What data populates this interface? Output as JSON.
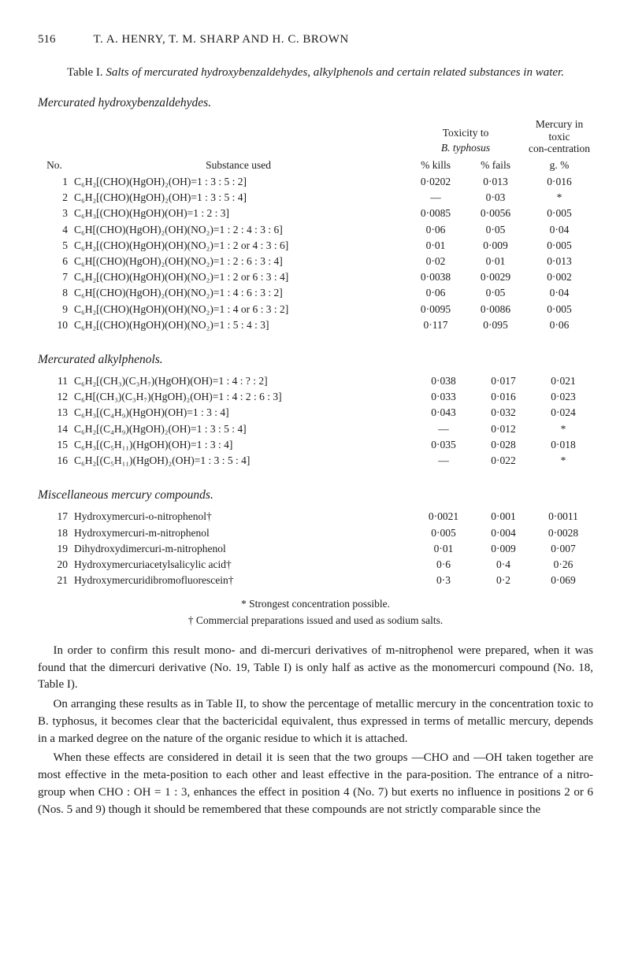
{
  "header": {
    "page_number": "516",
    "running_head": "T. A. HENRY, T. M. SHARP AND H. C. BROWN"
  },
  "table_caption": {
    "number": "Table I.",
    "text_italic": "Salts of mercurated hydroxybenzaldehydes, alkylphenols and certain related substances in water."
  },
  "headers": {
    "toxicity_super": "Toxicity to",
    "toxicity_super2": "B. typhosus",
    "mercury_super": "Mercury in toxic con‑centration",
    "no": "No.",
    "substance": "Substance used",
    "kills": "% kills",
    "fails": "% fails",
    "gpct": "g. %"
  },
  "sections": {
    "a": "Mercurated hydroxybenzaldehydes.",
    "b": "Mercurated alkylphenols.",
    "c": "Miscellaneous mercury compounds."
  },
  "rowsA": [
    {
      "no": "1",
      "sub": "C₆H₂[(CHO)(HgOH)₂(OH)=1 : 3 : 5 : 2]",
      "kills": "0·0202",
      "fails": "0·013",
      "g": "0·016"
    },
    {
      "no": "2",
      "sub": "C₆H₂[(CHO)(HgOH)₂(OH)=1 : 3 : 5 : 4]",
      "kills": "—",
      "fails": "0·03",
      "g": "*"
    },
    {
      "no": "3",
      "sub": "C₆H₃[(CHO)(HgOH)(OH)=1 : 2 : 3]",
      "kills": "0·0085",
      "fails": "0·0056",
      "g": "0·005"
    },
    {
      "no": "4",
      "sub": "C₆H[(CHO)(HgOH)₂(OH)(NO₂)=1 : 2 : 4 : 3 : 6]",
      "kills": "0·06",
      "fails": "0·05",
      "g": "0·04"
    },
    {
      "no": "5",
      "sub": "C₆H₂[(CHO)(HgOH)(OH)(NO₂)=1 : 2 or 4 : 3 : 6]",
      "kills": "0·01",
      "fails": "0·009",
      "g": "0·005"
    },
    {
      "no": "6",
      "sub": "C₆H[(CHO)(HgOH)₂(OH)(NO₂)=1 : 2 : 6 : 3 : 4]",
      "kills": "0·02",
      "fails": "0·01",
      "g": "0·013"
    },
    {
      "no": "7",
      "sub": "C₆H₂[(CHO)(HgOH)(OH)(NO₂)=1 : 2 or 6 : 3 : 4]",
      "kills": "0·0038",
      "fails": "0·0029",
      "g": "0·002"
    },
    {
      "no": "8",
      "sub": "C₆H[(CHO)(HgOH)₂(OH)(NO₂)=1 : 4 : 6 : 3 : 2]",
      "kills": "0·06",
      "fails": "0·05",
      "g": "0·04"
    },
    {
      "no": "9",
      "sub": "C₆H₂[(CHO)(HgOH)(OH)(NO₂)=1 : 4 or 6 : 3 : 2]",
      "kills": "0·0095",
      "fails": "0·0086",
      "g": "0·005"
    },
    {
      "no": "10",
      "sub": "C₆H₂[(CHO)(HgOH)(OH)(NO₂)=1 : 5 : 4 : 3]",
      "kills": "0·117",
      "fails": "0·095",
      "g": "0·06"
    }
  ],
  "rowsB": [
    {
      "no": "11",
      "sub": "C₆H₂[(CH₃)(C₃H₇)(HgOH)(OH)=1 : 4 : ? : 2]",
      "kills": "0·038",
      "fails": "0·017",
      "g": "0·021"
    },
    {
      "no": "12",
      "sub": "C₆H[(CH₃)(C₃H₇)(HgOH)₂(OH)=1 : 4 : 2 : 6 : 3]",
      "kills": "0·033",
      "fails": "0·016",
      "g": "0·023"
    },
    {
      "no": "13",
      "sub": "C₆H₃[(C₄H₉)(HgOH)(OH)=1 : 3 : 4]",
      "kills": "0·043",
      "fails": "0·032",
      "g": "0·024"
    },
    {
      "no": "14",
      "sub": "C₆H₂[(C₄H₉)(HgOH)₂(OH)=1 : 3 : 5 : 4]",
      "kills": "—",
      "fails": "0·012",
      "g": "*"
    },
    {
      "no": "15",
      "sub": "C₆H₃[(C₅H₁₁)(HgOH)(OH)=1 : 3 : 4]",
      "kills": "0·035",
      "fails": "0·028",
      "g": "0·018"
    },
    {
      "no": "16",
      "sub": "C₆H₂[(C₅H₁₁)(HgOH)₂(OH)=1 : 3 : 5 : 4]",
      "kills": "—",
      "fails": "0·022",
      "g": "*"
    }
  ],
  "rowsC": [
    {
      "no": "17",
      "sub": "Hydroxymercuri-o-nitrophenol†",
      "kills": "0·0021",
      "fails": "0·001",
      "g": "0·0011"
    },
    {
      "no": "18",
      "sub": "Hydroxymercuri-m-nitrophenol",
      "kills": "0·005",
      "fails": "0·004",
      "g": "0·0028"
    },
    {
      "no": "19",
      "sub": "Dihydroxydimercuri-m-nitrophenol",
      "kills": "0·01",
      "fails": "0·009",
      "g": "0·007"
    },
    {
      "no": "20",
      "sub": "Hydroxymercuriacetylsalicylic acid†",
      "kills": "0·6",
      "fails": "0·4",
      "g": "0·26"
    },
    {
      "no": "21",
      "sub": "Hydroxymercuridibromofluorescein†",
      "kills": "0·3",
      "fails": "0·2",
      "g": "0·069"
    }
  ],
  "footnotes": {
    "star": "* Strongest concentration possible.",
    "dagger": "† Commercial preparations issued and used as sodium salts."
  },
  "paras": [
    "In order to confirm this result mono- and di-mercuri derivatives of m-nitro­phenol were prepared, when it was found that the dimercuri derivative (No. 19, Table I) is only half as active as the monomercuri compound (No. 18, Table I).",
    "On arranging these results as in Table II, to show the percentage of metallic mercury in the concentration toxic to B. typhosus, it becomes clear that the bactericidal equivalent, thus expressed in terms of metallic mercury, depends in a marked degree on the nature of the organic residue to which it is attached.",
    "When these effects are considered in detail it is seen that the two groups —CHO and —OH taken together are most effective in the meta-position to each other and least effective in the para-position. The entrance of a nitro-group when CHO : OH = 1 : 3, enhances the effect in position 4 (No. 7) but exerts no influence in positions 2 or 6 (Nos. 5 and 9) though it should be remembered that these compounds are not strictly comparable since the"
  ]
}
